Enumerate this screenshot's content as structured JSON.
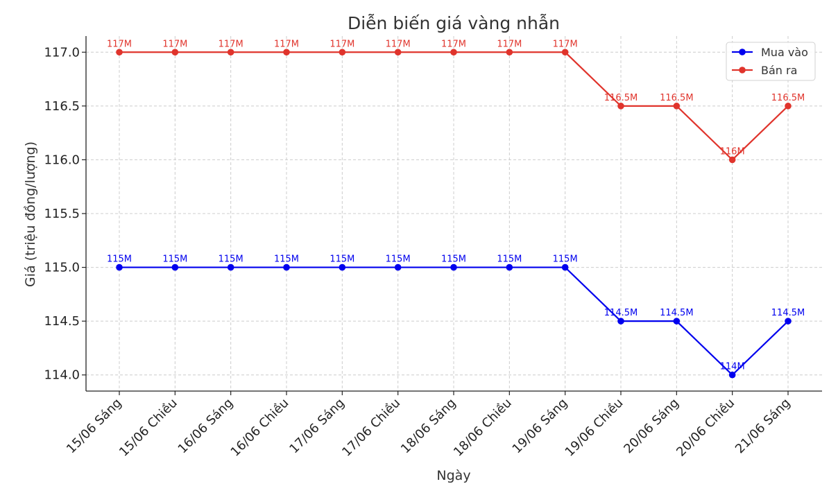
{
  "chart_data": {
    "type": "line",
    "title": "Diễn biến giá vàng nhẫn",
    "xlabel": "Ngày",
    "ylabel": "Giá (triệu đồng/lượng)",
    "categories": [
      "15/06 Sáng",
      "15/06 Chiều",
      "16/06 Sáng",
      "16/06 Chiều",
      "17/06 Sáng",
      "17/06 Chiều",
      "18/06 Sáng",
      "18/06 Chiều",
      "19/06 Sáng",
      "19/06 Chiều",
      "20/06 Sáng",
      "20/06 Chiều",
      "21/06 Sáng"
    ],
    "ylim": [
      113.85,
      117.15
    ],
    "yticks": [
      "114.0",
      "114.5",
      "115.0",
      "115.5",
      "116.0",
      "116.5",
      "117.0"
    ],
    "grid": true,
    "legend_position": "top-right",
    "series": [
      {
        "name": "Mua vào",
        "color": "#0000ee",
        "values": [
          115,
          115,
          115,
          115,
          115,
          115,
          115,
          115,
          115,
          114.5,
          114.5,
          114,
          114.5
        ],
        "labels": [
          "115M",
          "115M",
          "115M",
          "115M",
          "115M",
          "115M",
          "115M",
          "115M",
          "115M",
          "114.5M",
          "114.5M",
          "114M",
          "114.5M"
        ]
      },
      {
        "name": "Bán ra",
        "color": "#e0342c",
        "values": [
          117,
          117,
          117,
          117,
          117,
          117,
          117,
          117,
          117,
          116.5,
          116.5,
          116,
          116.5
        ],
        "labels": [
          "117M",
          "117M",
          "117M",
          "117M",
          "117M",
          "117M",
          "117M",
          "117M",
          "117M",
          "116.5M",
          "116.5M",
          "116M",
          "116.5M"
        ]
      }
    ]
  }
}
